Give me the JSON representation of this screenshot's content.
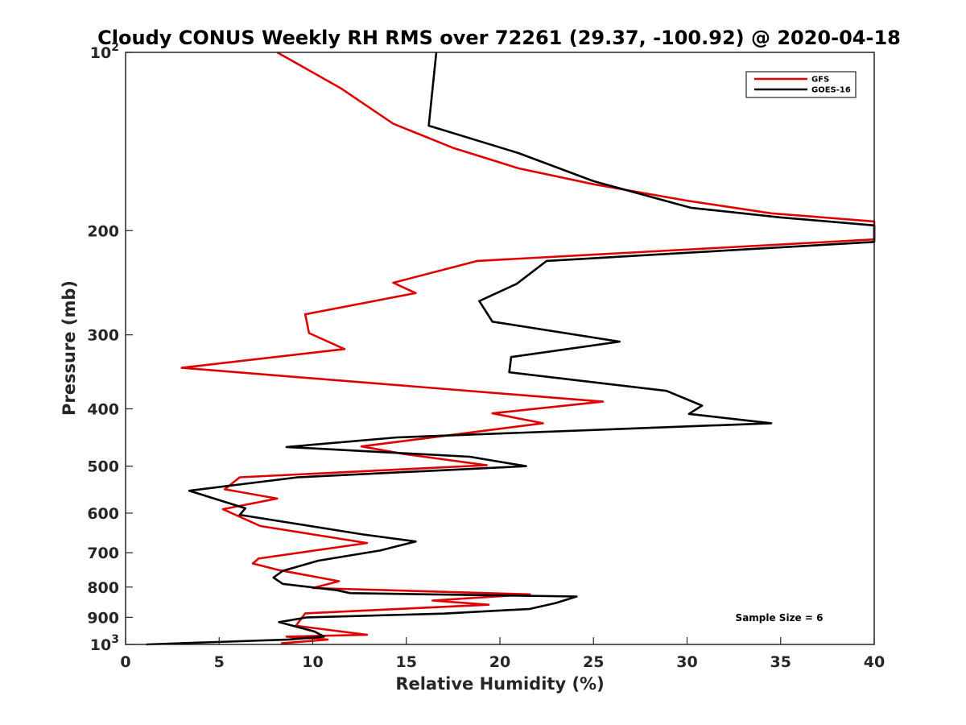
{
  "chart_data": {
    "type": "line",
    "title": "Cloudy CONUS Weekly RH RMS over 72261 (29.37, -100.92) @ 2020-04-18",
    "xlabel": "Relative Humidity (%)",
    "ylabel": "Pressure (mb)",
    "xlim": [
      0,
      40
    ],
    "ylim": [
      100,
      1000
    ],
    "y_scale": "log",
    "y_reversed": true,
    "grid": false,
    "legend_position": "top-right",
    "x_ticks": [
      {
        "value": 0,
        "label": "0"
      },
      {
        "value": 5,
        "label": "5"
      },
      {
        "value": 10,
        "label": "10"
      },
      {
        "value": 15,
        "label": "15"
      },
      {
        "value": 20,
        "label": "20"
      },
      {
        "value": 25,
        "label": "25"
      },
      {
        "value": 30,
        "label": "30"
      },
      {
        "value": 35,
        "label": "35"
      },
      {
        "value": 40,
        "label": "40"
      }
    ],
    "y_ticks": [
      {
        "value": 100,
        "base": "10",
        "exp": "2"
      },
      {
        "value": 200,
        "label": "200"
      },
      {
        "value": 300,
        "label": "300"
      },
      {
        "value": 400,
        "label": "400"
      },
      {
        "value": 500,
        "label": "500"
      },
      {
        "value": 600,
        "label": "600"
      },
      {
        "value": 700,
        "label": "700"
      },
      {
        "value": 800,
        "label": "800"
      },
      {
        "value": 900,
        "label": "900"
      },
      {
        "value": 1000,
        "base": "10",
        "exp": "3"
      }
    ],
    "annotations": [
      {
        "text": "Sample Size = 6",
        "x": 35.5,
        "y": 920
      }
    ],
    "series": [
      {
        "name": "GFS",
        "color": "#e00000",
        "points": [
          [
            8.1,
            100
          ],
          [
            11.5,
            115
          ],
          [
            14.3,
            132
          ],
          [
            17.5,
            145
          ],
          [
            21,
            157
          ],
          [
            25,
            167
          ],
          [
            30,
            178
          ],
          [
            34.5,
            187
          ],
          [
            40,
            193
          ],
          [
            40,
            207
          ],
          [
            18.8,
            225
          ],
          [
            14.3,
            245
          ],
          [
            15.5,
            255
          ],
          [
            9.6,
            277
          ],
          [
            9.8,
            298
          ],
          [
            11.7,
            317
          ],
          [
            3.0,
            341
          ],
          [
            25.5,
            389
          ],
          [
            19.6,
            407
          ],
          [
            22.3,
            423
          ],
          [
            12.6,
            463
          ],
          [
            14.9,
            477
          ],
          [
            19.3,
            498
          ],
          [
            6.1,
            522
          ],
          [
            5.3,
            547
          ],
          [
            8.1,
            567
          ],
          [
            5.2,
            591
          ],
          [
            7.2,
            631
          ],
          [
            12.9,
            674
          ],
          [
            7.1,
            716
          ],
          [
            6.8,
            730
          ],
          [
            8.2,
            749
          ],
          [
            11.4,
            782
          ],
          [
            10.0,
            803
          ],
          [
            21.6,
            823
          ],
          [
            16.4,
            843
          ],
          [
            19.4,
            857
          ],
          [
            9.6,
            886
          ],
          [
            9.1,
            930
          ],
          [
            12.9,
            963
          ],
          [
            8.6,
            970
          ],
          [
            10.8,
            981
          ],
          [
            8.3,
            996
          ]
        ]
      },
      {
        "name": "GOES-16",
        "color": "#000000",
        "points": [
          [
            16.6,
            100
          ],
          [
            16.2,
            133
          ],
          [
            21,
            148
          ],
          [
            25,
            165
          ],
          [
            30.2,
            183
          ],
          [
            35,
            190
          ],
          [
            40,
            196
          ],
          [
            40,
            209
          ],
          [
            22.5,
            225
          ],
          [
            20.9,
            246
          ],
          [
            18.9,
            263
          ],
          [
            19.6,
            285
          ],
          [
            26.4,
            308
          ],
          [
            20.6,
            327
          ],
          [
            20.5,
            347
          ],
          [
            28.9,
            373
          ],
          [
            30.8,
            395
          ],
          [
            30.1,
            408
          ],
          [
            34.5,
            423
          ],
          [
            14.5,
            447
          ],
          [
            8.6,
            464
          ],
          [
            18.4,
            482
          ],
          [
            21.4,
            500
          ],
          [
            9.2,
            522
          ],
          [
            3.4,
            550
          ],
          [
            6.4,
            589
          ],
          [
            6.1,
            604
          ],
          [
            12.7,
            652
          ],
          [
            15.5,
            670
          ],
          [
            13.6,
            694
          ],
          [
            10.3,
            722
          ],
          [
            8.4,
            751
          ],
          [
            7.9,
            771
          ],
          [
            8.4,
            790
          ],
          [
            11.3,
            810
          ],
          [
            12.0,
            819
          ],
          [
            24.1,
            830
          ],
          [
            23.0,
            851
          ],
          [
            21.6,
            871
          ],
          [
            17.0,
            887
          ],
          [
            9.7,
            900
          ],
          [
            8.2,
            917
          ],
          [
            10.1,
            951
          ],
          [
            10.6,
            970
          ],
          [
            8.7,
            981
          ],
          [
            1.1,
            1000
          ]
        ]
      }
    ]
  }
}
